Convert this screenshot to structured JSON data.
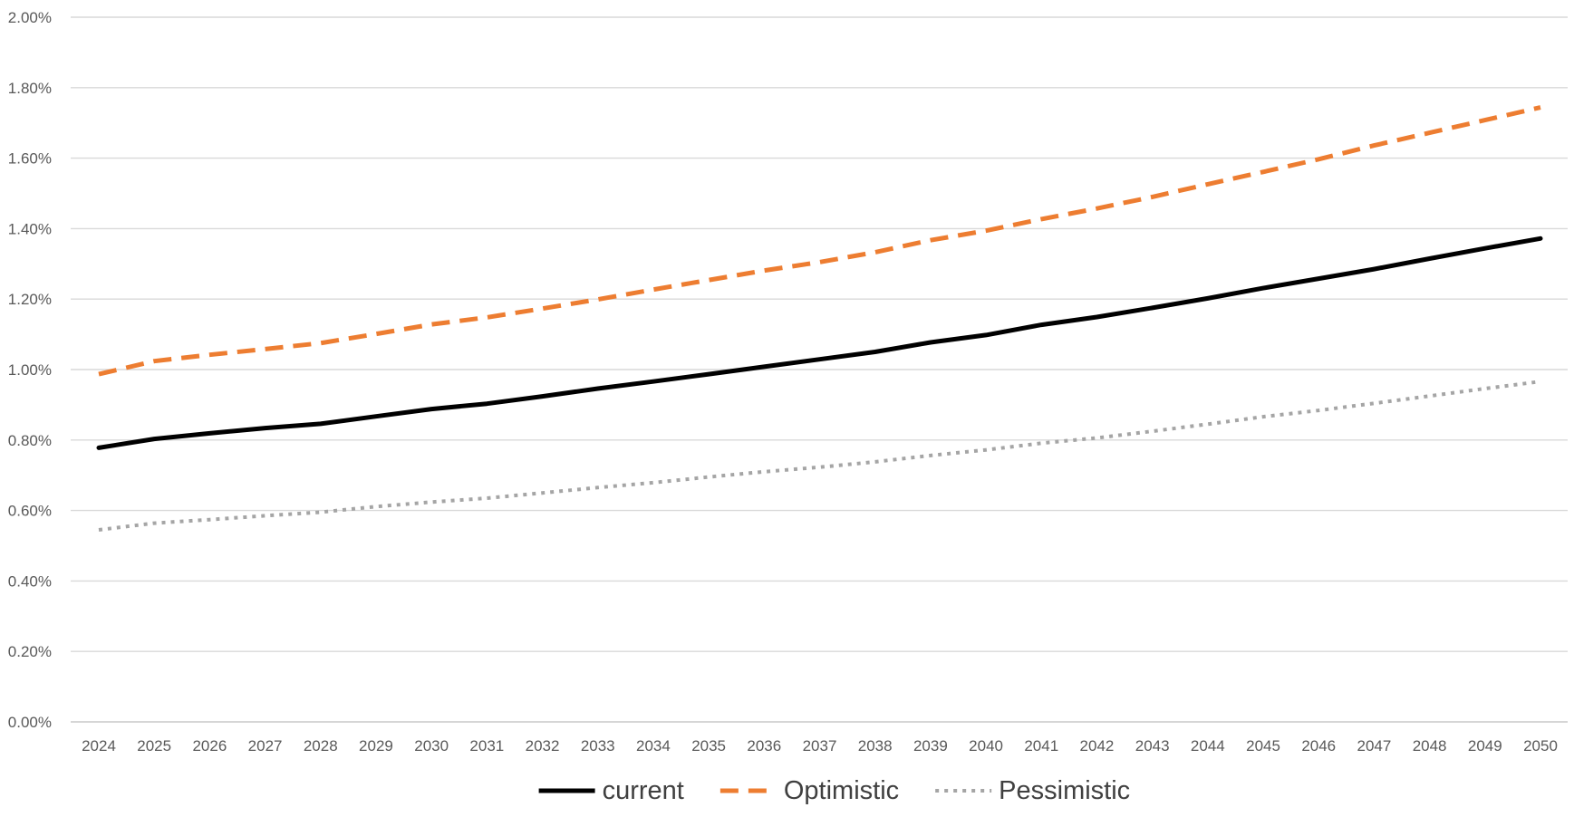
{
  "chart_data": {
    "type": "line",
    "title": "",
    "xlabel": "",
    "ylabel": "",
    "x": [
      "2024",
      "2025",
      "2026",
      "2027",
      "2028",
      "2029",
      "2030",
      "2031",
      "2032",
      "2033",
      "2034",
      "2035",
      "2036",
      "2037",
      "2038",
      "2039",
      "2040",
      "2041",
      "2042",
      "2043",
      "2044",
      "2045",
      "2046",
      "2047",
      "2048",
      "2049",
      "2050"
    ],
    "ylim": [
      0,
      0.02
    ],
    "yticks": [
      "0.00%",
      "0.20%",
      "0.40%",
      "0.60%",
      "0.80%",
      "1.00%",
      "1.20%",
      "1.40%",
      "1.60%",
      "1.80%",
      "2.00%"
    ],
    "ytick_values": [
      0,
      0.002,
      0.004,
      0.006,
      0.008,
      0.01,
      0.012,
      0.014,
      0.016,
      0.018,
      0.02
    ],
    "grid": "horizontal",
    "legend_position": "bottom",
    "series": [
      {
        "name": "current",
        "style": "solid",
        "color": "#000000",
        "values": [
          0.00778,
          0.00803,
          0.00819,
          0.00834,
          0.00846,
          0.00867,
          0.00888,
          0.00903,
          0.00924,
          0.00946,
          0.00966,
          0.00987,
          0.01008,
          0.01029,
          0.0105,
          0.01077,
          0.01098,
          0.01127,
          0.01149,
          0.01175,
          0.01202,
          0.01231,
          0.01258,
          0.01285,
          0.01315,
          0.01344,
          0.01372
        ]
      },
      {
        "name": "Optimistic",
        "style": "dashed",
        "color": "#ED7D31",
        "values": [
          0.00987,
          0.01024,
          0.01042,
          0.01058,
          0.01075,
          0.01101,
          0.01128,
          0.01148,
          0.01173,
          0.01199,
          0.01227,
          0.01254,
          0.01281,
          0.01305,
          0.01333,
          0.01367,
          0.01394,
          0.01427,
          0.01457,
          0.0149,
          0.01526,
          0.01561,
          0.01597,
          0.01636,
          0.01672,
          0.01708,
          0.01744
        ]
      },
      {
        "name": "Pessimistic",
        "style": "dotted",
        "color": "#A5A5A5",
        "values": [
          0.00545,
          0.00564,
          0.00574,
          0.00585,
          0.00595,
          0.00611,
          0.00624,
          0.00635,
          0.0065,
          0.00665,
          0.00679,
          0.00695,
          0.0071,
          0.00723,
          0.00738,
          0.00756,
          0.00772,
          0.00791,
          0.00806,
          0.00825,
          0.00845,
          0.00866,
          0.00884,
          0.00904,
          0.00925,
          0.00946,
          0.00966
        ]
      }
    ]
  }
}
